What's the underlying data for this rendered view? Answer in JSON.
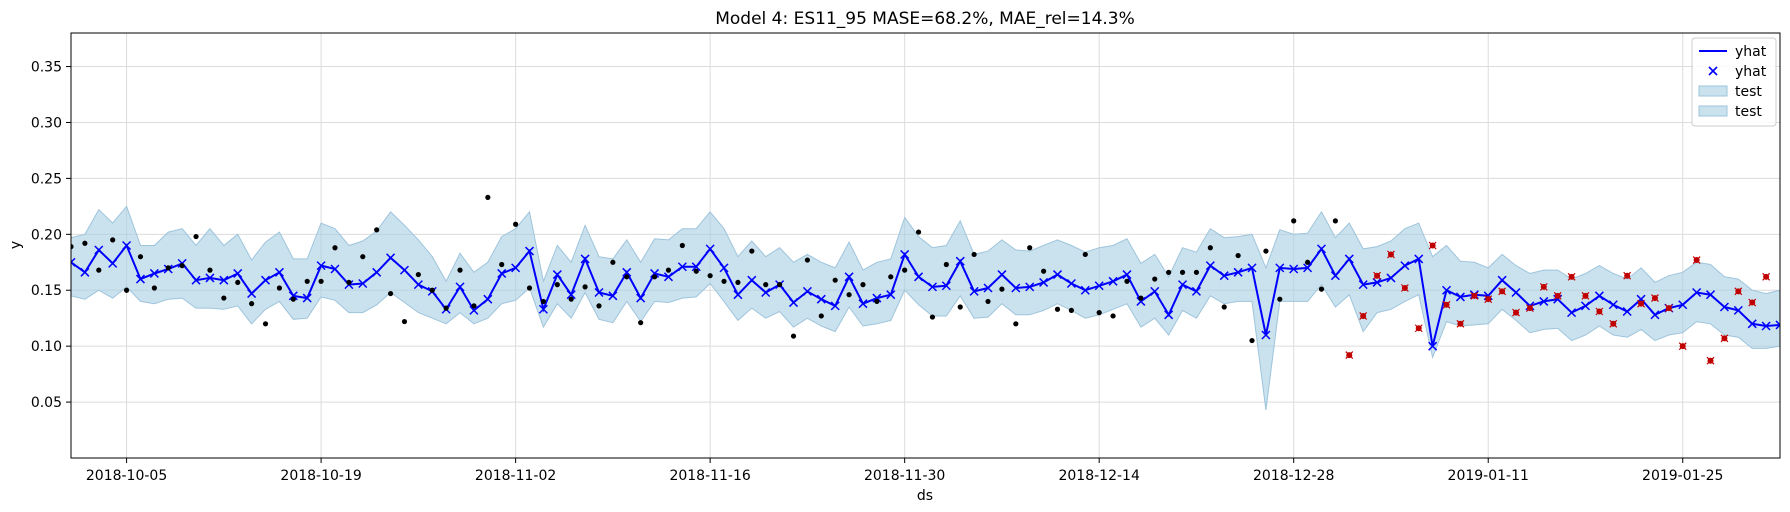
{
  "chart_data": {
    "type": "line",
    "title": "Model 4: ES11_95 MASE=68.2%, MAE_rel=14.3%",
    "xlabel": "ds",
    "ylabel": "y",
    "xlim": [
      "2018-10-01",
      "2019-02-01"
    ],
    "ylim": [
      0.0,
      0.38
    ],
    "x_ticks": [
      "2018-10-05",
      "2018-10-19",
      "2018-11-02",
      "2018-11-16",
      "2018-11-30",
      "2018-12-14",
      "2018-12-28",
      "2019-01-11",
      "2019-01-25"
    ],
    "y_ticks": [
      0.05,
      0.1,
      0.15,
      0.2,
      0.25,
      0.3,
      0.35
    ],
    "grid": true,
    "legend_position": "top-right",
    "legend": [
      "yhat",
      "yhat",
      "test",
      "test"
    ],
    "colors": {
      "forecast": "#0000ff",
      "band": "#a6cee3",
      "band_edge": "#9ec4dc",
      "actual": "#000000",
      "test_actual": "#c00000"
    },
    "yhat": [
      0.175,
      0.166,
      0.186,
      0.174,
      0.19,
      0.16,
      0.165,
      0.169,
      0.174,
      0.159,
      0.161,
      0.159,
      0.165,
      0.147,
      0.159,
      0.166,
      0.145,
      0.143,
      0.172,
      0.169,
      0.155,
      0.156,
      0.166,
      0.179,
      0.168,
      0.155,
      0.149,
      0.133,
      0.153,
      0.132,
      0.142,
      0.165,
      0.17,
      0.185,
      0.133,
      0.164,
      0.146,
      0.178,
      0.148,
      0.145,
      0.166,
      0.143,
      0.165,
      0.162,
      0.171,
      0.171,
      0.187,
      0.17,
      0.146,
      0.159,
      0.148,
      0.155,
      0.139,
      0.149,
      0.142,
      0.136,
      0.162,
      0.138,
      0.143,
      0.146,
      0.182,
      0.162,
      0.153,
      0.154,
      0.176,
      0.149,
      0.152,
      0.164,
      0.152,
      0.153,
      0.157,
      0.164,
      0.156,
      0.15,
      0.154,
      0.158,
      0.164,
      0.14,
      0.149,
      0.128,
      0.155,
      0.149,
      0.172,
      0.163,
      0.166,
      0.17,
      0.11,
      0.17,
      0.169,
      0.17,
      0.187,
      0.163,
      0.178,
      0.155,
      0.157,
      0.161,
      0.172,
      0.178,
      0.1,
      0.15,
      0.144,
      0.146,
      0.145,
      0.159,
      0.148,
      0.136,
      0.14,
      0.142,
      0.13,
      0.136,
      0.145,
      0.137,
      0.131,
      0.142,
      0.128,
      0.134,
      0.137,
      0.148,
      0.146,
      0.135,
      0.132,
      0.12,
      0.118,
      0.119
    ],
    "upper": [
      0.197,
      0.2,
      0.222,
      0.21,
      0.225,
      0.19,
      0.19,
      0.202,
      0.205,
      0.19,
      0.205,
      0.19,
      0.2,
      0.177,
      0.193,
      0.202,
      0.178,
      0.178,
      0.21,
      0.205,
      0.19,
      0.194,
      0.203,
      0.22,
      0.208,
      0.195,
      0.18,
      0.158,
      0.183,
      0.166,
      0.175,
      0.198,
      0.205,
      0.22,
      0.158,
      0.19,
      0.175,
      0.208,
      0.18,
      0.178,
      0.195,
      0.175,
      0.196,
      0.195,
      0.205,
      0.205,
      0.22,
      0.205,
      0.18,
      0.194,
      0.18,
      0.188,
      0.175,
      0.182,
      0.175,
      0.17,
      0.193,
      0.168,
      0.175,
      0.178,
      0.215,
      0.198,
      0.188,
      0.19,
      0.212,
      0.182,
      0.185,
      0.195,
      0.186,
      0.185,
      0.19,
      0.195,
      0.19,
      0.184,
      0.188,
      0.19,
      0.196,
      0.174,
      0.182,
      0.162,
      0.188,
      0.184,
      0.205,
      0.197,
      0.198,
      0.2,
      0.17,
      0.204,
      0.2,
      0.201,
      0.22,
      0.197,
      0.21,
      0.187,
      0.189,
      0.194,
      0.205,
      0.21,
      0.18,
      0.19,
      0.176,
      0.175,
      0.17,
      0.182,
      0.172,
      0.165,
      0.168,
      0.168,
      0.16,
      0.165,
      0.172,
      0.165,
      0.16,
      0.17,
      0.157,
      0.163,
      0.166,
      0.175,
      0.173,
      0.162,
      0.16,
      0.15,
      0.147,
      0.15
    ],
    "lower": [
      0.145,
      0.142,
      0.15,
      0.143,
      0.153,
      0.14,
      0.138,
      0.142,
      0.143,
      0.134,
      0.134,
      0.133,
      0.136,
      0.12,
      0.133,
      0.14,
      0.124,
      0.125,
      0.144,
      0.141,
      0.13,
      0.13,
      0.137,
      0.148,
      0.139,
      0.13,
      0.125,
      0.12,
      0.13,
      0.12,
      0.125,
      0.138,
      0.141,
      0.152,
      0.117,
      0.138,
      0.125,
      0.148,
      0.124,
      0.121,
      0.14,
      0.122,
      0.14,
      0.139,
      0.143,
      0.144,
      0.156,
      0.14,
      0.123,
      0.134,
      0.125,
      0.131,
      0.117,
      0.125,
      0.118,
      0.113,
      0.135,
      0.118,
      0.12,
      0.123,
      0.15,
      0.137,
      0.127,
      0.127,
      0.145,
      0.125,
      0.126,
      0.138,
      0.128,
      0.128,
      0.132,
      0.138,
      0.132,
      0.125,
      0.128,
      0.133,
      0.138,
      0.117,
      0.125,
      0.11,
      0.132,
      0.125,
      0.145,
      0.138,
      0.14,
      0.14,
      0.043,
      0.14,
      0.14,
      0.14,
      0.155,
      0.135,
      0.146,
      0.113,
      0.13,
      0.133,
      0.14,
      0.146,
      0.09,
      0.122,
      0.118,
      0.119,
      0.12,
      0.133,
      0.123,
      0.112,
      0.115,
      0.116,
      0.105,
      0.11,
      0.118,
      0.11,
      0.108,
      0.115,
      0.105,
      0.11,
      0.112,
      0.122,
      0.12,
      0.11,
      0.108,
      0.098,
      0.098,
      0.1
    ],
    "actual_train": [
      [
        "2018-10-01",
        0.189
      ],
      [
        "2018-10-02",
        0.192
      ],
      [
        "2018-10-03",
        0.168
      ],
      [
        "2018-10-04",
        0.195
      ],
      [
        "2018-10-05",
        0.15
      ],
      [
        "2018-10-06",
        0.18
      ],
      [
        "2018-10-07",
        0.152
      ],
      [
        "2018-10-08",
        0.17
      ],
      [
        "2018-10-09",
        0.172
      ],
      [
        "2018-10-10",
        0.198
      ],
      [
        "2018-10-11",
        0.168
      ],
      [
        "2018-10-12",
        0.143
      ],
      [
        "2018-10-13",
        0.157
      ],
      [
        "2018-10-14",
        0.138
      ],
      [
        "2018-10-15",
        0.12
      ],
      [
        "2018-10-16",
        0.152
      ],
      [
        "2018-10-17",
        0.142
      ],
      [
        "2018-10-18",
        0.158
      ],
      [
        "2018-10-19",
        0.158
      ],
      [
        "2018-10-20",
        0.188
      ],
      [
        "2018-10-21",
        0.157
      ],
      [
        "2018-10-22",
        0.18
      ],
      [
        "2018-10-23",
        0.204
      ],
      [
        "2018-10-24",
        0.147
      ],
      [
        "2018-10-25",
        0.122
      ],
      [
        "2018-10-26",
        0.164
      ],
      [
        "2018-10-27",
        0.15
      ],
      [
        "2018-10-28",
        0.134
      ],
      [
        "2018-10-29",
        0.168
      ],
      [
        "2018-10-30",
        0.136
      ],
      [
        "2018-10-31",
        0.233
      ],
      [
        "2018-11-01",
        0.173
      ],
      [
        "2018-11-02",
        0.209
      ],
      [
        "2018-11-03",
        0.152
      ],
      [
        "2018-11-04",
        0.14
      ],
      [
        "2018-11-05",
        0.155
      ],
      [
        "2018-11-06",
        0.142
      ],
      [
        "2018-11-07",
        0.153
      ],
      [
        "2018-11-08",
        0.136
      ],
      [
        "2018-11-09",
        0.175
      ],
      [
        "2018-11-10",
        0.162
      ],
      [
        "2018-11-11",
        0.121
      ],
      [
        "2018-11-12",
        0.162
      ],
      [
        "2018-11-13",
        0.168
      ],
      [
        "2018-11-14",
        0.19
      ],
      [
        "2018-11-15",
        0.167
      ],
      [
        "2018-11-16",
        0.163
      ],
      [
        "2018-11-17",
        0.158
      ],
      [
        "2018-11-18",
        0.157
      ],
      [
        "2018-11-19",
        0.185
      ],
      [
        "2018-11-20",
        0.155
      ],
      [
        "2018-11-21",
        0.155
      ],
      [
        "2018-11-22",
        0.109
      ],
      [
        "2018-11-23",
        0.177
      ],
      [
        "2018-11-24",
        0.127
      ],
      [
        "2018-11-25",
        0.159
      ],
      [
        "2018-11-26",
        0.146
      ],
      [
        "2018-11-27",
        0.155
      ],
      [
        "2018-11-28",
        0.14
      ],
      [
        "2018-11-29",
        0.162
      ],
      [
        "2018-11-30",
        0.168
      ],
      [
        "2018-12-01",
        0.202
      ],
      [
        "2018-12-02",
        0.126
      ],
      [
        "2018-12-03",
        0.173
      ],
      [
        "2018-12-04",
        0.135
      ],
      [
        "2018-12-05",
        0.182
      ],
      [
        "2018-12-06",
        0.14
      ],
      [
        "2018-12-07",
        0.151
      ],
      [
        "2018-12-08",
        0.12
      ],
      [
        "2018-12-09",
        0.188
      ],
      [
        "2018-12-10",
        0.167
      ],
      [
        "2018-12-11",
        0.133
      ],
      [
        "2018-12-12",
        0.132
      ],
      [
        "2018-12-13",
        0.182
      ],
      [
        "2018-12-14",
        0.13
      ],
      [
        "2018-12-15",
        0.127
      ],
      [
        "2018-12-16",
        0.158
      ],
      [
        "2018-12-17",
        0.143
      ],
      [
        "2018-12-18",
        0.16
      ],
      [
        "2018-12-19",
        0.166
      ],
      [
        "2018-12-20",
        0.166
      ],
      [
        "2018-12-21",
        0.166
      ],
      [
        "2018-12-22",
        0.188
      ],
      [
        "2018-12-23",
        0.135
      ],
      [
        "2018-12-24",
        0.181
      ],
      [
        "2018-12-25",
        0.105
      ],
      [
        "2018-12-26",
        0.185
      ],
      [
        "2018-12-27",
        0.142
      ],
      [
        "2018-12-28",
        0.212
      ],
      [
        "2018-12-29",
        0.175
      ],
      [
        "2018-12-30",
        0.151
      ],
      [
        "2018-12-31",
        0.212
      ]
    ],
    "actual_test": [
      [
        "2019-01-01",
        0.092
      ],
      [
        "2019-01-02",
        0.127
      ],
      [
        "2019-01-03",
        0.163
      ],
      [
        "2019-01-04",
        0.182
      ],
      [
        "2019-01-05",
        0.152
      ],
      [
        "2019-01-06",
        0.116
      ],
      [
        "2019-01-07",
        0.19
      ],
      [
        "2019-01-08",
        0.137
      ],
      [
        "2019-01-09",
        0.12
      ],
      [
        "2019-01-10",
        0.145
      ],
      [
        "2019-01-11",
        0.142
      ],
      [
        "2019-01-12",
        0.149
      ],
      [
        "2019-01-13",
        0.13
      ],
      [
        "2019-01-14",
        0.134
      ],
      [
        "2019-01-15",
        0.153
      ],
      [
        "2019-01-16",
        0.145
      ],
      [
        "2019-01-17",
        0.162
      ],
      [
        "2019-01-18",
        0.145
      ],
      [
        "2019-01-19",
        0.131
      ],
      [
        "2019-01-20",
        0.12
      ],
      [
        "2019-01-21",
        0.163
      ],
      [
        "2019-01-22",
        0.138
      ],
      [
        "2019-01-23",
        0.143
      ],
      [
        "2019-01-24",
        0.134
      ],
      [
        "2019-01-25",
        0.1
      ],
      [
        "2019-01-26",
        0.177
      ],
      [
        "2019-01-27",
        0.087
      ],
      [
        "2019-01-28",
        0.107
      ],
      [
        "2019-01-29",
        0.149
      ],
      [
        "2019-01-30",
        0.139
      ],
      [
        "2019-01-31",
        0.162
      ]
    ]
  }
}
